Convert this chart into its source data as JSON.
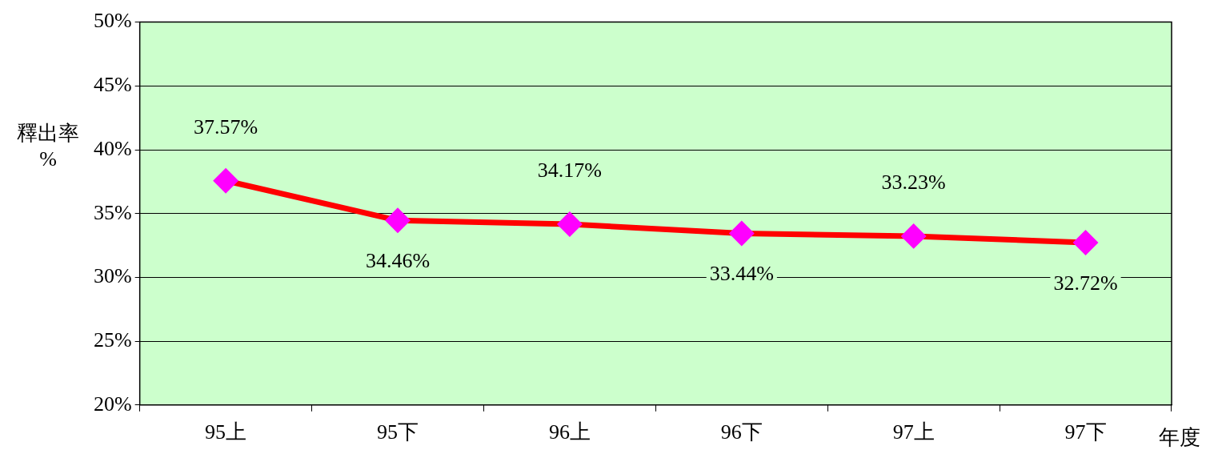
{
  "chart_data": {
    "type": "line",
    "xlabel": "年度",
    "ylabel": "釋出率\n%",
    "categories": [
      "95上",
      "95下",
      "96上",
      "96下",
      "97上",
      "97下"
    ],
    "series": [
      {
        "color": "#ff0000",
        "values": [
          37.57,
          34.46,
          34.17,
          33.44,
          33.23,
          32.72
        ],
        "value_labels": [
          "37.57%",
          "34.46%",
          "34.17%",
          "33.44%",
          "33.23%",
          "32.72%"
        ]
      }
    ],
    "ylim": [
      20,
      50
    ],
    "yticks": [
      {
        "value": 20,
        "label": "20%"
      },
      {
        "value": 25,
        "label": "25%"
      },
      {
        "value": 30,
        "label": "30%"
      },
      {
        "value": 35,
        "label": "35%"
      },
      {
        "value": 40,
        "label": "40%"
      },
      {
        "value": 45,
        "label": "45%"
      },
      {
        "value": 50,
        "label": "50%"
      }
    ],
    "grid": "y",
    "legend": false,
    "marker": "diamond",
    "line_style": "solid"
  }
}
